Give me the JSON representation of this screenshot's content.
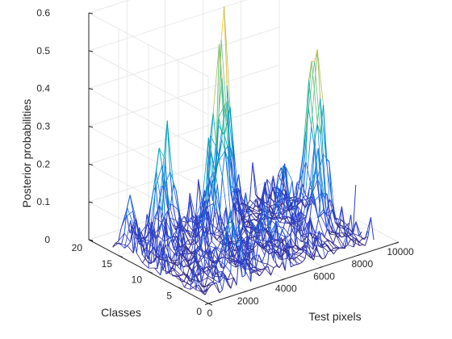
{
  "chart_data": {
    "type": "surface",
    "title": "",
    "xlabel": "Test pixels",
    "ylabel": "Classes",
    "zlabel": "Posterior probabilities",
    "xlim": [
      0,
      10000
    ],
    "ylim": [
      0,
      20
    ],
    "zlim": [
      0,
      0.6
    ],
    "x_ticks": [
      "0",
      "2000",
      "4000",
      "6000",
      "8000",
      "10000"
    ],
    "y_ticks": [
      "0",
      "5",
      "10",
      "15",
      "20"
    ],
    "z_ticks": [
      "0",
      "0.1",
      "0.2",
      "0.3",
      "0.4",
      "0.5",
      "0.6"
    ],
    "grid": true,
    "colormap": "parula",
    "x_extent": [
      0,
      9000
    ],
    "y_extent": [
      1,
      16
    ],
    "max_value": 0.57,
    "peaks": [
      {
        "x": 5800,
        "y": 16,
        "z": 0.57
      },
      {
        "x": 4700,
        "y": 13,
        "z": 0.48
      },
      {
        "x": 5300,
        "y": 14,
        "z": 0.41
      },
      {
        "x": 8600,
        "y": 9,
        "z": 0.43
      },
      {
        "x": 8200,
        "y": 9,
        "z": 0.4
      },
      {
        "x": 3300,
        "y": 10,
        "z": 0.3
      },
      {
        "x": 1500,
        "y": 13,
        "z": 0.28
      },
      {
        "x": 2600,
        "y": 15,
        "z": 0.25
      },
      {
        "x": 7600,
        "y": 6,
        "z": 0.23
      },
      {
        "x": 6500,
        "y": 8,
        "z": 0.2
      },
      {
        "x": 600,
        "y": 15,
        "z": 0.14
      },
      {
        "x": 2100,
        "y": 3,
        "z": 0.18
      },
      {
        "x": 4200,
        "y": 4,
        "z": 0.15
      }
    ]
  }
}
